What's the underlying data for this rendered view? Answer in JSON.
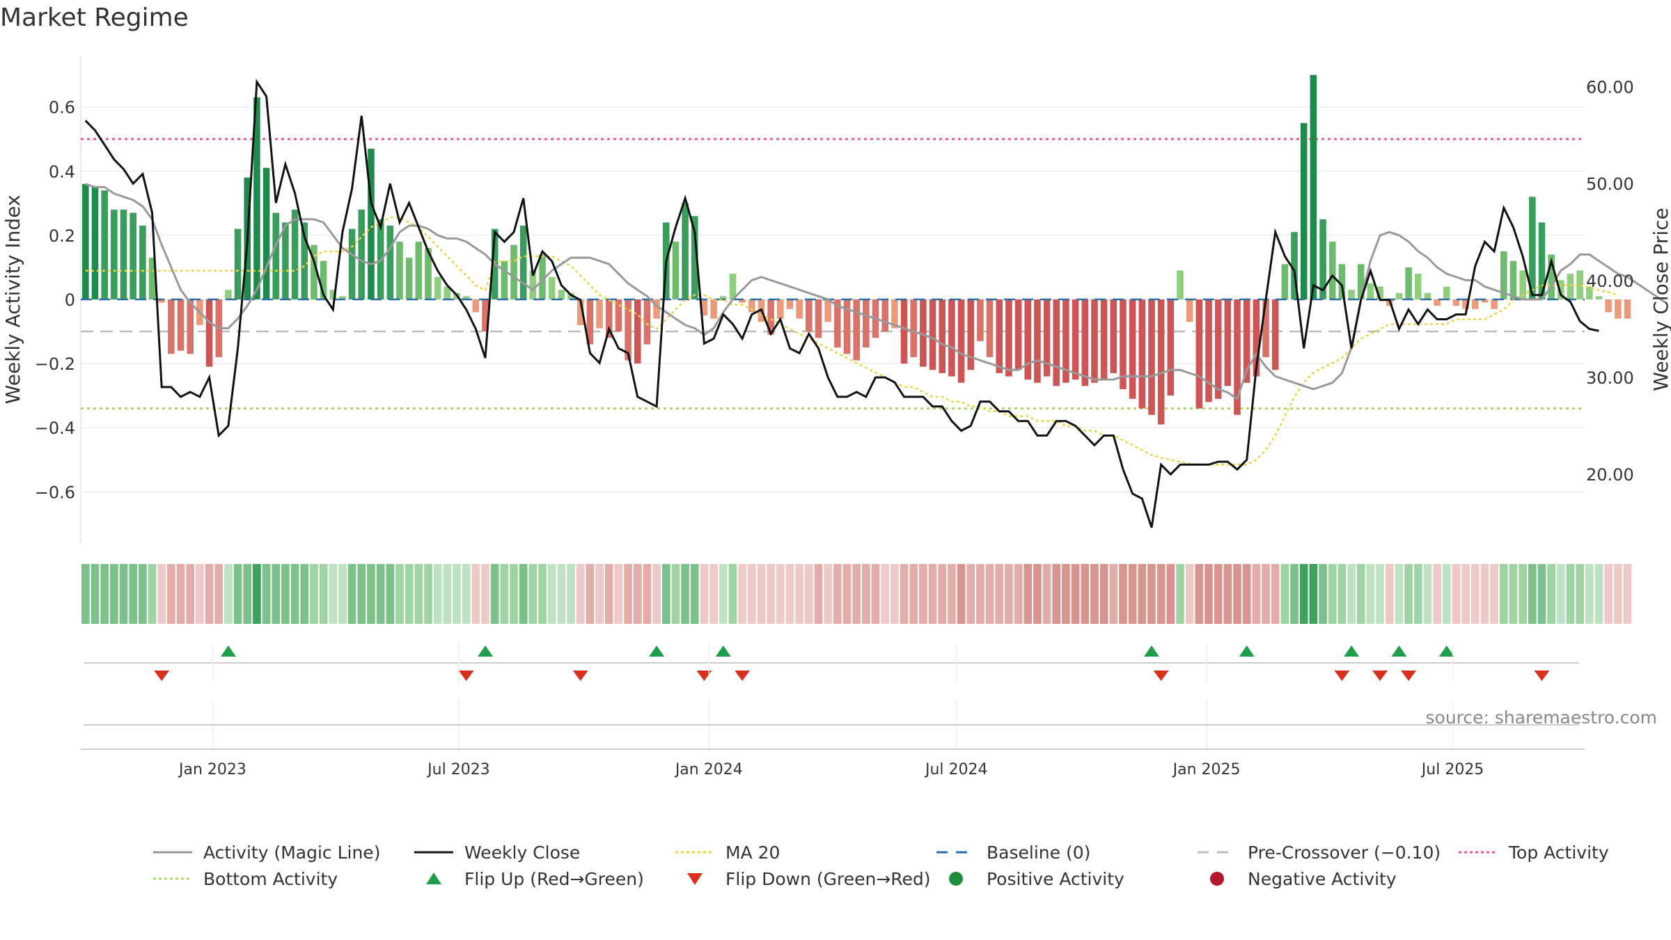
{
  "chart_data": {
    "type": "bar",
    "title": "Market Regime",
    "ylabel_left": "Weekly Activity Index",
    "ylabel_right": "Weekly Close Price",
    "ylim_left": [
      -0.76,
      0.76
    ],
    "ylim_right": [
      12.9,
      63.2
    ],
    "yticks_left": [
      0.6,
      0.4,
      0.2,
      0,
      -0.2,
      -0.4,
      -0.6
    ],
    "yticks_left_labels": [
      "0.6",
      "0.4",
      "0.2",
      "0",
      "−0.2",
      "−0.4",
      "−0.6"
    ],
    "yticks_right": [
      60,
      50,
      40,
      30,
      20
    ],
    "yticks_right_labels": [
      "60.00",
      "50.00",
      "40.00",
      "30.00",
      "20.00"
    ],
    "x_start": "2022-09-26",
    "x_end": "2025-10-06",
    "xticks": [
      "2023-01-01",
      "2023-07-01",
      "2024-01-01",
      "2024-07-01",
      "2025-01-01",
      "2025-07-01"
    ],
    "xtick_labels": [
      "Jan 2023",
      "Jul 2023",
      "Jan 2024",
      "Jul 2024",
      "Jan 2025",
      "Jul 2025"
    ],
    "weeks": 158,
    "top_activity": 0.5,
    "bottom_activity": -0.34,
    "pre_crossover": -0.1,
    "baseline": 0,
    "series": [
      {
        "name": "Activity (Magic Line)",
        "color": "#999999",
        "values": [
          0.36,
          0.35,
          0.35,
          0.33,
          0.32,
          0.31,
          0.29,
          0.25,
          0.17,
          0.1,
          0.03,
          -0.01,
          -0.04,
          -0.07,
          -0.09,
          -0.09,
          -0.06,
          -0.02,
          0.03,
          0.1,
          0.17,
          0.23,
          0.25,
          0.25,
          0.25,
          0.24,
          0.2,
          0.16,
          0.14,
          0.12,
          0.11,
          0.12,
          0.16,
          0.21,
          0.23,
          0.23,
          0.22,
          0.2,
          0.19,
          0.19,
          0.18,
          0.16,
          0.14,
          0.11,
          0.09,
          0.07,
          0.05,
          0.03,
          0.06,
          0.09,
          0.11,
          0.13,
          0.13,
          0.13,
          0.12,
          0.11,
          0.08,
          0.05,
          0.03,
          0.01,
          -0.02,
          -0.04,
          -0.06,
          -0.08,
          -0.09,
          -0.11,
          -0.09,
          -0.04,
          0.0,
          0.03,
          0.06,
          0.07,
          0.06,
          0.05,
          0.04,
          0.03,
          0.02,
          0.01,
          0.0,
          -0.02,
          -0.03,
          -0.04,
          -0.05,
          -0.06,
          -0.07,
          -0.08,
          -0.09,
          -0.1,
          -0.11,
          -0.12,
          -0.14,
          -0.15,
          -0.17,
          -0.18,
          -0.19,
          -0.2,
          -0.21,
          -0.22,
          -0.22,
          -0.2,
          -0.19,
          -0.2,
          -0.21,
          -0.22,
          -0.23,
          -0.24,
          -0.25,
          -0.25,
          -0.25,
          -0.24,
          -0.24,
          -0.24,
          -0.24,
          -0.23,
          -0.22,
          -0.22,
          -0.23,
          -0.24,
          -0.26,
          -0.28,
          -0.29,
          -0.31,
          -0.22,
          -0.17,
          -0.21,
          -0.24,
          -0.25,
          -0.26,
          -0.27,
          -0.28,
          -0.27,
          -0.26,
          -0.23,
          -0.15,
          0.0,
          0.12,
          0.2,
          0.21,
          0.2,
          0.18,
          0.15,
          0.13,
          0.1,
          0.08,
          0.07,
          0.06,
          0.06,
          0.04,
          0.03,
          0.02,
          0.01,
          0.0,
          0.0,
          0.0,
          0.04,
          0.09,
          0.11,
          0.14,
          0.14,
          0.12,
          0.1,
          0.08,
          0.07,
          0.05,
          0.03,
          0.01,
          -0.01
        ]
      },
      {
        "name": "Weekly Close",
        "color": "#111111",
        "values": [
          56.5,
          55.5,
          54.0,
          52.5,
          51.5,
          50.0,
          51.0,
          47.0,
          29.0,
          29.0,
          28.0,
          28.5,
          28.0,
          30.0,
          24.0,
          25.0,
          33.0,
          44.0,
          60.5,
          59.0,
          48.0,
          52.0,
          49.0,
          44.5,
          42.0,
          38.5,
          37.0,
          45.0,
          49.5,
          57.0,
          48.0,
          45.5,
          50.0,
          46.0,
          48.0,
          45.5,
          43.0,
          41.0,
          39.5,
          38.5,
          37.0,
          35.0,
          32.0,
          45.0,
          44.0,
          45.0,
          48.5,
          40.5,
          43.0,
          42.0,
          39.5,
          38.5,
          38.0,
          32.5,
          31.5,
          35.0,
          33.0,
          32.5,
          28.0,
          27.5,
          27.0,
          42.0,
          45.5,
          48.5,
          45.0,
          33.5,
          34.0,
          36.5,
          35.5,
          34.0,
          36.5,
          37.0,
          34.5,
          36.0,
          33.0,
          32.5,
          34.5,
          33.0,
          30.0,
          28.0,
          28.0,
          28.5,
          28.0,
          30.0,
          30.0,
          29.5,
          28.0,
          28.0,
          28.0,
          27.0,
          27.0,
          25.5,
          24.5,
          25.0,
          27.5,
          27.5,
          26.5,
          26.5,
          25.5,
          25.5,
          24.0,
          24.0,
          25.5,
          25.5,
          25.0,
          24.0,
          23.0,
          24.0,
          24.0,
          20.5,
          18.0,
          17.5,
          14.5,
          21.0,
          20.0,
          21.0,
          21.0,
          21.0,
          21.0,
          21.3,
          21.3,
          20.5,
          21.5,
          31.0,
          38.0,
          45.0,
          42.5,
          41.0,
          33.0,
          39.5,
          39.0,
          40.5,
          39.5,
          33.0,
          38.0,
          41.0,
          38.0,
          38.0,
          35.0,
          37.0,
          35.5,
          37.0,
          36.0,
          36.0,
          36.5,
          36.5,
          41.5,
          44.0,
          43.0,
          47.5,
          45.5,
          42.5,
          38.5,
          38.5,
          42.0,
          38.5,
          37.8,
          35.8,
          35.0,
          34.8
        ]
      },
      {
        "name": "MA 20",
        "color": "#ecd442",
        "values": [
          41.0,
          41.0,
          41.0,
          41.0,
          41.0,
          41.0,
          41.0,
          41.0,
          41.0,
          41.0,
          41.0,
          41.0,
          41.0,
          41.0,
          41.0,
          41.0,
          41.0,
          41.0,
          41.0,
          41.0,
          41.0,
          41.0,
          41.0,
          41.5,
          42.5,
          43.0,
          43.0,
          43.0,
          43.5,
          44.5,
          45.5,
          46.0,
          46.5,
          46.5,
          46.0,
          45.5,
          44.5,
          43.5,
          42.5,
          41.5,
          40.5,
          39.5,
          39.0,
          42.0,
          42.0,
          42.0,
          42.5,
          42.5,
          42.5,
          42.5,
          42.0,
          41.5,
          40.5,
          39.5,
          38.5,
          38.0,
          37.5,
          37.0,
          36.5,
          35.5,
          35.0,
          36.0,
          37.0,
          38.0,
          38.5,
          38.5,
          38.0,
          38.0,
          37.5,
          37.5,
          37.0,
          36.5,
          36.0,
          35.5,
          35.0,
          34.5,
          34.0,
          33.5,
          33.0,
          32.5,
          32.0,
          31.5,
          31.0,
          30.5,
          30.0,
          29.5,
          29.0,
          29.0,
          28.5,
          28.0,
          28.0,
          27.5,
          27.5,
          27.0,
          27.0,
          26.5,
          26.5,
          26.0,
          26.0,
          26.0,
          25.5,
          25.5,
          25.5,
          25.0,
          25.0,
          24.5,
          24.5,
          24.0,
          24.0,
          23.5,
          23.0,
          22.5,
          22.0,
          21.7,
          21.5,
          21.3,
          21.1,
          21.0,
          21.0,
          21.0,
          21.0,
          21.0,
          21.0,
          21.5,
          22.5,
          24.0,
          26.0,
          28.0,
          29.5,
          30.5,
          31.0,
          31.5,
          32.0,
          33.0,
          34.0,
          34.5,
          35.0,
          35.5,
          35.5,
          35.5,
          35.5,
          35.5,
          35.5,
          35.5,
          36.0,
          36.0,
          36.0,
          36.0,
          36.5,
          37.0,
          38.0,
          38.5,
          39.0,
          39.5,
          39.5,
          39.5,
          39.5,
          39.5,
          39.3,
          39.0,
          38.8,
          38.5
        ]
      }
    ],
    "activity_bars": [
      0.36,
      0.35,
      0.34,
      0.28,
      0.28,
      0.27,
      0.23,
      0.13,
      -0.01,
      -0.17,
      -0.16,
      -0.17,
      -0.08,
      -0.21,
      -0.18,
      0.03,
      0.22,
      0.38,
      0.63,
      0.41,
      0.27,
      0.24,
      0.28,
      0.24,
      0.17,
      0.12,
      0.03,
      0.01,
      0.22,
      0.28,
      0.47,
      0.25,
      0.23,
      0.18,
      0.13,
      0.18,
      0.16,
      0.07,
      0.04,
      0.02,
      0.01,
      -0.04,
      -0.1,
      0.22,
      0.12,
      0.17,
      0.23,
      0.09,
      0.14,
      0.07,
      0.03,
      0.02,
      -0.08,
      -0.14,
      -0.09,
      -0.12,
      -0.1,
      -0.19,
      -0.2,
      -0.14,
      -0.06,
      0.24,
      0.18,
      0.3,
      0.26,
      -0.05,
      -0.06,
      0.01,
      0.08,
      -0.01,
      -0.04,
      -0.07,
      -0.11,
      -0.06,
      -0.03,
      -0.06,
      -0.1,
      -0.12,
      -0.07,
      -0.15,
      -0.17,
      -0.19,
      -0.15,
      -0.12,
      -0.1,
      -0.09,
      -0.2,
      -0.18,
      -0.21,
      -0.22,
      -0.23,
      -0.24,
      -0.26,
      -0.22,
      -0.13,
      -0.18,
      -0.23,
      -0.24,
      -0.22,
      -0.25,
      -0.26,
      -0.24,
      -0.27,
      -0.26,
      -0.25,
      -0.27,
      -0.26,
      -0.25,
      -0.23,
      -0.28,
      -0.31,
      -0.34,
      -0.36,
      -0.39,
      -0.3,
      0.09,
      -0.07,
      -0.34,
      -0.32,
      -0.31,
      -0.27,
      -0.36,
      -0.26,
      -0.24,
      -0.18,
      -0.22,
      0.11,
      0.21,
      0.55,
      0.7,
      0.25,
      0.18,
      0.11,
      0.03,
      0.11,
      0.05,
      0.04,
      -0.02,
      0.02,
      0.1,
      0.08,
      0.02,
      -0.02,
      0.04,
      -0.02,
      -0.03,
      -0.03,
      -0.01,
      -0.03,
      0.15,
      0.12,
      0.09,
      0.32,
      0.24,
      0.14,
      0.06,
      0.08,
      0.09,
      0.04,
      0.01,
      -0.04,
      -0.06,
      -0.06
    ],
    "flip_up_weeks": [
      15,
      42,
      60,
      67,
      112,
      122,
      133,
      138,
      143
    ],
    "flip_down_weeks": [
      8,
      40,
      52,
      65,
      69,
      113,
      132,
      136,
      139,
      153
    ],
    "source": "source: sharemaestro.com",
    "legend": [
      {
        "label": "Activity (Magic Line)",
        "kind": "line",
        "color": "#999999"
      },
      {
        "label": "Weekly Close",
        "kind": "line",
        "color": "#111111"
      },
      {
        "label": "MA 20",
        "kind": "dotted",
        "color": "#ecd442"
      },
      {
        "label": "Baseline (0)",
        "kind": "dashed",
        "color": "#2b6ea6"
      },
      {
        "label": "Pre-Crossover (−0.10)",
        "kind": "dashed",
        "color": "#bbbbbb"
      },
      {
        "label": "Top Activity",
        "kind": "dotted",
        "color": "#e8607a"
      },
      {
        "label": "Bottom Activity",
        "kind": "dotted",
        "color": "#a6d96a"
      },
      {
        "label": "Flip Up (Red→Green)",
        "kind": "tri-up",
        "color": "#1e9e4a"
      },
      {
        "label": "Flip Down (Green→Red)",
        "kind": "tri-down",
        "color": "#d7301f"
      },
      {
        "label": "Positive Activity",
        "kind": "dot",
        "color": "#1e8e3e"
      },
      {
        "label": "Negative Activity",
        "kind": "dot",
        "color": "#b2182b"
      }
    ]
  }
}
